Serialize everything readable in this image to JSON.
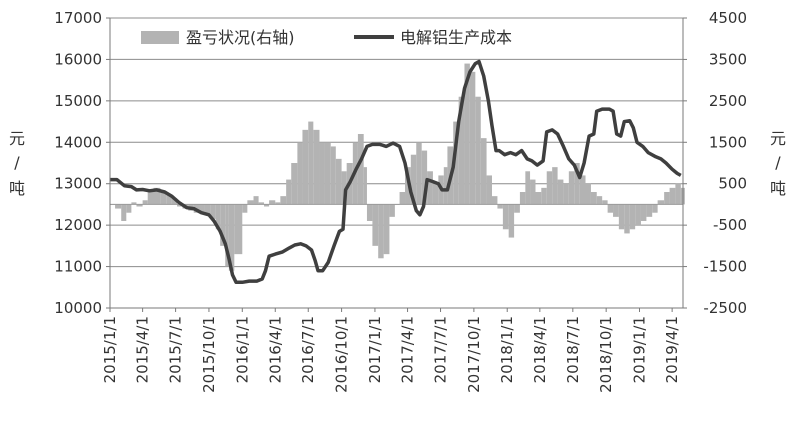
{
  "chart_data": {
    "type": "bar+line",
    "legend": {
      "placement": "top",
      "items": [
        {
          "label": "盈亏状况(右轴)",
          "kind": "bar",
          "color": "#b3b3b3"
        },
        {
          "label": "电解铝生产成本",
          "kind": "line",
          "color": "#3f3f3f"
        }
      ]
    },
    "left_axis": {
      "unit_label": [
        "元",
        "/",
        "吨"
      ],
      "range": [
        10000,
        17000
      ],
      "ticks": [
        10000,
        11000,
        12000,
        13000,
        14000,
        15000,
        16000,
        17000
      ],
      "tick_labels": [
        "10000",
        "11000",
        "12000",
        "13000",
        "14000",
        "15000",
        "16000",
        "17000"
      ],
      "grid": true
    },
    "right_axis": {
      "unit_label": [
        "元",
        "/",
        "吨"
      ],
      "range": [
        -2500,
        4500
      ],
      "ticks": [
        -2500,
        -1500,
        -500,
        500,
        1500,
        2500,
        3500,
        4500
      ],
      "tick_labels": [
        "-2500",
        "-1500",
        "-500",
        "500",
        "1500",
        "2500",
        "3500",
        "4500"
      ]
    },
    "x_axis": {
      "range": [
        "2015/1/1",
        "2019/5/1"
      ],
      "tick_labels": [
        "2015/1/1",
        "2015/4/1",
        "2015/7/1",
        "2015/10/1",
        "2016/1/1",
        "2016/4/1",
        "2016/7/1",
        "2016/10/1",
        "2017/1/1",
        "2017/4/1",
        "2017/7/1",
        "2017/10/1",
        "2018/1/1",
        "2018/4/1",
        "2018/7/1",
        "2018/10/1",
        "2019/1/1",
        "2019/4/1"
      ]
    },
    "series": [
      {
        "name": "电解铝生产成本",
        "type": "line",
        "axis": "left",
        "points": [
          [
            "2015/1/1",
            13100
          ],
          [
            "2015/1/20",
            13100
          ],
          [
            "2015/2/10",
            12950
          ],
          [
            "2015/3/1",
            12930
          ],
          [
            "2015/3/15",
            12850
          ],
          [
            "2015/4/1",
            12860
          ],
          [
            "2015/4/20",
            12830
          ],
          [
            "2015/5/10",
            12850
          ],
          [
            "2015/6/1",
            12800
          ],
          [
            "2015/6/20",
            12700
          ],
          [
            "2015/7/10",
            12550
          ],
          [
            "2015/8/1",
            12420
          ],
          [
            "2015/8/20",
            12400
          ],
          [
            "2015/9/10",
            12300
          ],
          [
            "2015/10/1",
            12250
          ],
          [
            "2015/10/15",
            12100
          ],
          [
            "2015/11/1",
            11850
          ],
          [
            "2015/11/15",
            11550
          ],
          [
            "2015/11/25",
            11200
          ],
          [
            "2015/12/5",
            10800
          ],
          [
            "2015/12/15",
            10620
          ],
          [
            "2016/1/1",
            10620
          ],
          [
            "2016/1/20",
            10650
          ],
          [
            "2016/2/10",
            10650
          ],
          [
            "2016/2/25",
            10700
          ],
          [
            "2016/3/5",
            10900
          ],
          [
            "2016/3/15",
            11250
          ],
          [
            "2016/4/1",
            11300
          ],
          [
            "2016/4/20",
            11350
          ],
          [
            "2016/5/10",
            11450
          ],
          [
            "2016/5/25",
            11520
          ],
          [
            "2016/6/10",
            11550
          ],
          [
            "2016/6/25",
            11500
          ],
          [
            "2016/7/10",
            11400
          ],
          [
            "2016/7/20",
            11150
          ],
          [
            "2016/7/28",
            10900
          ],
          [
            "2016/8/10",
            10900
          ],
          [
            "2016/8/25",
            11100
          ],
          [
            "2016/9/10",
            11500
          ],
          [
            "2016/9/25",
            11850
          ],
          [
            "2016/10/5",
            11900
          ],
          [
            "2016/10/12",
            12850
          ],
          [
            "2016/10/25",
            13050
          ],
          [
            "2016/11/10",
            13350
          ],
          [
            "2016/11/25",
            13600
          ],
          [
            "2016/12/10",
            13900
          ],
          [
            "2016/12/25",
            13950
          ],
          [
            "2017/1/15",
            13950
          ],
          [
            "2017/2/1",
            13900
          ],
          [
            "2017/2/20",
            13980
          ],
          [
            "2017/3/10",
            13900
          ],
          [
            "2017/3/25",
            13500
          ],
          [
            "2017/4/10",
            12800
          ],
          [
            "2017/4/25",
            12350
          ],
          [
            "2017/5/5",
            12250
          ],
          [
            "2017/5/15",
            12450
          ],
          [
            "2017/5/25",
            13100
          ],
          [
            "2017/6/10",
            13050
          ],
          [
            "2017/6/25",
            13000
          ],
          [
            "2017/7/5",
            12850
          ],
          [
            "2017/7/20",
            12850
          ],
          [
            "2017/8/5",
            13400
          ],
          [
            "2017/8/20",
            14500
          ],
          [
            "2017/9/5",
            15300
          ],
          [
            "2017/9/20",
            15700
          ],
          [
            "2017/10/5",
            15900
          ],
          [
            "2017/10/15",
            15950
          ],
          [
            "2017/10/28",
            15600
          ],
          [
            "2017/11/10",
            15000
          ],
          [
            "2017/11/20",
            14400
          ],
          [
            "2017/12/1",
            13800
          ],
          [
            "2017/12/10",
            13800
          ],
          [
            "2017/12/25",
            13700
          ],
          [
            "2018/1/10",
            13750
          ],
          [
            "2018/1/25",
            13700
          ],
          [
            "2018/2/10",
            13800
          ],
          [
            "2018/2/25",
            13600
          ],
          [
            "2018/3/10",
            13550
          ],
          [
            "2018/3/25",
            13450
          ],
          [
            "2018/4/10",
            13550
          ],
          [
            "2018/4/20",
            14250
          ],
          [
            "2018/5/5",
            14300
          ],
          [
            "2018/5/20",
            14200
          ],
          [
            "2018/6/5",
            13900
          ],
          [
            "2018/6/20",
            13600
          ],
          [
            "2018/7/5",
            13450
          ],
          [
            "2018/7/20",
            13150
          ],
          [
            "2018/8/1",
            13500
          ],
          [
            "2018/8/15",
            14150
          ],
          [
            "2018/8/28",
            14200
          ],
          [
            "2018/9/5",
            14750
          ],
          [
            "2018/9/20",
            14800
          ],
          [
            "2018/10/10",
            14800
          ],
          [
            "2018/10/20",
            14750
          ],
          [
            "2018/10/30",
            14200
          ],
          [
            "2018/11/10",
            14150
          ],
          [
            "2018/11/20",
            14500
          ],
          [
            "2018/12/5",
            14520
          ],
          [
            "2018/12/15",
            14350
          ],
          [
            "2018/12/25",
            14000
          ],
          [
            "2019/1/10",
            13900
          ],
          [
            "2019/1/25",
            13750
          ],
          [
            "2019/2/15",
            13650
          ],
          [
            "2019/3/1",
            13600
          ],
          [
            "2019/3/15",
            13500
          ],
          [
            "2019/4/1",
            13350
          ],
          [
            "2019/4/15",
            13250
          ],
          [
            "2019/4/25",
            13200
          ]
        ]
      },
      {
        "name": "盈亏状况(右轴)",
        "type": "bar",
        "axis": "right",
        "points": [
          [
            "2015/1/1",
            0
          ],
          [
            "2015/1/15",
            -100
          ],
          [
            "2015/2/1",
            -400
          ],
          [
            "2015/2/15",
            -200
          ],
          [
            "2015/3/1",
            50
          ],
          [
            "2015/3/15",
            -50
          ],
          [
            "2015/4/1",
            100
          ],
          [
            "2015/4/15",
            300
          ],
          [
            "2015/5/1",
            400
          ],
          [
            "2015/5/20",
            300
          ],
          [
            "2015/6/5",
            250
          ],
          [
            "2015/6/20",
            150
          ],
          [
            "2015/7/5",
            -50
          ],
          [
            "2015/7/20",
            -100
          ],
          [
            "2015/8/5",
            -150
          ],
          [
            "2015/8/20",
            -200
          ],
          [
            "2015/9/5",
            -200
          ],
          [
            "2015/9/20",
            -250
          ],
          [
            "2015/10/5",
            -350
          ],
          [
            "2015/10/20",
            -600
          ],
          [
            "2015/11/1",
            -1000
          ],
          [
            "2015/11/15",
            -1500
          ],
          [
            "2015/11/25",
            -1600
          ],
          [
            "2015/12/10",
            -1200
          ],
          [
            "2016/1/1",
            -200
          ],
          [
            "2016/1/15",
            100
          ],
          [
            "2016/2/1",
            200
          ],
          [
            "2016/2/15",
            50
          ],
          [
            "2016/3/1",
            -50
          ],
          [
            "2016/3/15",
            100
          ],
          [
            "2016/4/1",
            50
          ],
          [
            "2016/4/15",
            200
          ],
          [
            "2016/5/1",
            600
          ],
          [
            "2016/5/15",
            1000
          ],
          [
            "2016/6/1",
            1500
          ],
          [
            "2016/6/15",
            1800
          ],
          [
            "2016/7/1",
            2000
          ],
          [
            "2016/7/15",
            1800
          ],
          [
            "2016/8/1",
            1500
          ],
          [
            "2016/8/15",
            1500
          ],
          [
            "2016/9/1",
            1400
          ],
          [
            "2016/9/15",
            1100
          ],
          [
            "2016/10/1",
            800
          ],
          [
            "2016/10/15",
            1000
          ],
          [
            "2016/11/1",
            1500
          ],
          [
            "2016/11/15",
            1700
          ],
          [
            "2016/12/1",
            900
          ],
          [
            "2016/12/10",
            -400
          ],
          [
            "2016/12/25",
            -1000
          ],
          [
            "2017/1/10",
            -1300
          ],
          [
            "2017/1/25",
            -1200
          ],
          [
            "2017/2/10",
            -300
          ],
          [
            "2017/2/25",
            0
          ],
          [
            "2017/3/10",
            300
          ],
          [
            "2017/3/25",
            900
          ],
          [
            "2017/4/10",
            1200
          ],
          [
            "2017/4/25",
            1500
          ],
          [
            "2017/5/10",
            1300
          ],
          [
            "2017/5/25",
            800
          ],
          [
            "2017/6/10",
            500
          ],
          [
            "2017/6/25",
            700
          ],
          [
            "2017/7/10",
            900
          ],
          [
            "2017/7/20",
            1400
          ],
          [
            "2017/8/5",
            2000
          ],
          [
            "2017/8/20",
            2600
          ],
          [
            "2017/9/5",
            3400
          ],
          [
            "2017/9/20",
            3200
          ],
          [
            "2017/10/5",
            2600
          ],
          [
            "2017/10/20",
            1600
          ],
          [
            "2017/11/5",
            700
          ],
          [
            "2017/11/20",
            200
          ],
          [
            "2017/12/5",
            -100
          ],
          [
            "2017/12/20",
            -600
          ],
          [
            "2018/1/5",
            -800
          ],
          [
            "2018/1/20",
            -200
          ],
          [
            "2018/2/5",
            300
          ],
          [
            "2018/2/20",
            800
          ],
          [
            "2018/3/5",
            600
          ],
          [
            "2018/3/20",
            300
          ],
          [
            "2018/4/5",
            400
          ],
          [
            "2018/4/20",
            800
          ],
          [
            "2018/5/5",
            900
          ],
          [
            "2018/5/20",
            600
          ],
          [
            "2018/6/5",
            500
          ],
          [
            "2018/6/20",
            800
          ],
          [
            "2018/7/5",
            1000
          ],
          [
            "2018/7/20",
            700
          ],
          [
            "2018/8/5",
            500
          ],
          [
            "2018/8/20",
            300
          ],
          [
            "2018/9/5",
            200
          ],
          [
            "2018/9/20",
            100
          ],
          [
            "2018/10/5",
            -200
          ],
          [
            "2018/10/20",
            -300
          ],
          [
            "2018/11/5",
            -600
          ],
          [
            "2018/11/20",
            -700
          ],
          [
            "2018/12/5",
            -600
          ],
          [
            "2018/12/20",
            -500
          ],
          [
            "2019/1/5",
            -400
          ],
          [
            "2019/1/20",
            -300
          ],
          [
            "2019/2/5",
            -200
          ],
          [
            "2019/2/20",
            100
          ],
          [
            "2019/3/10",
            300
          ],
          [
            "2019/3/25",
            400
          ],
          [
            "2019/4/10",
            500
          ],
          [
            "2019/4/25",
            400
          ]
        ]
      }
    ]
  }
}
